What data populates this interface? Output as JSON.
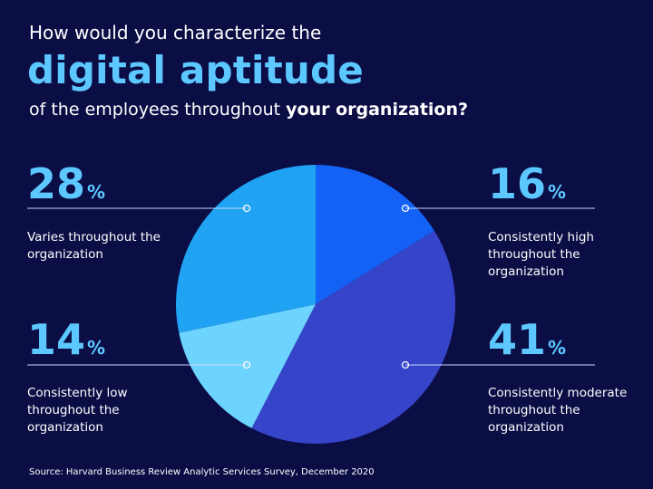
{
  "title": {
    "line1": "How would you characterize the",
    "line2": "digital aptitude",
    "line3_start": "of the employees throughout",
    "line3_bold": "your organization?"
  },
  "chart_data": {
    "type": "pie",
    "start_angle_deg": 0,
    "direction": "clockwise",
    "slices": [
      {
        "label": "Consistently high throughout the organization",
        "value": 16,
        "display": "16",
        "unit": "%",
        "color": "#1462f5"
      },
      {
        "label": "Consistently moderate throughout the organization",
        "value": 41,
        "display": "41",
        "unit": "%",
        "color": "#3544c8"
      },
      {
        "label": "Consistently low throughout the organization",
        "value": 14,
        "display": "14",
        "unit": "%",
        "color": "#6dd3ff"
      },
      {
        "label": "Varies throughout the organization",
        "value": 28,
        "display": "28",
        "unit": "%",
        "color": "#1fa3f2"
      }
    ],
    "leader_color": "#c7d9ff"
  },
  "source": "Source: Harvard Business Review Analytic Services Survey, December 2020"
}
